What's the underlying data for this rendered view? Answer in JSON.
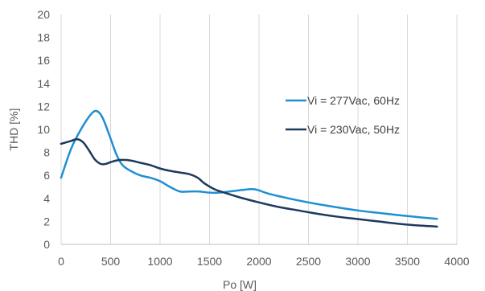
{
  "chart_data": {
    "type": "line",
    "title": "",
    "xlabel": "Po [W]",
    "ylabel": "THD [%]",
    "xlim": [
      0,
      4000
    ],
    "ylim": [
      0,
      20
    ],
    "x_ticks": [
      "0",
      "500",
      "1000",
      "1500",
      "2000",
      "2500",
      "3000",
      "3500",
      "4000"
    ],
    "y_ticks": [
      "0",
      "2",
      "4",
      "6",
      "8",
      "10",
      "12",
      "14",
      "16",
      "18",
      "20"
    ],
    "grid": "vertical",
    "legend_position": "right",
    "series": [
      {
        "name": "Vi = 277Vac, 60Hz",
        "color": "#1f8fd1",
        "points": [
          [
            0,
            5.8
          ],
          [
            100,
            8.3
          ],
          [
            200,
            10.0
          ],
          [
            300,
            11.3
          ],
          [
            360,
            11.6
          ],
          [
            420,
            11.0
          ],
          [
            500,
            9.2
          ],
          [
            560,
            7.8
          ],
          [
            620,
            6.9
          ],
          [
            700,
            6.4
          ],
          [
            800,
            6.0
          ],
          [
            900,
            5.8
          ],
          [
            1000,
            5.5
          ],
          [
            1100,
            5.0
          ],
          [
            1200,
            4.6
          ],
          [
            1300,
            4.6
          ],
          [
            1400,
            4.6
          ],
          [
            1500,
            4.5
          ],
          [
            1600,
            4.5
          ],
          [
            1700,
            4.6
          ],
          [
            1800,
            4.7
          ],
          [
            1900,
            4.8
          ],
          [
            1950,
            4.8
          ],
          [
            2000,
            4.7
          ],
          [
            2100,
            4.4
          ],
          [
            2300,
            4.0
          ],
          [
            2500,
            3.65
          ],
          [
            2700,
            3.35
          ],
          [
            3000,
            2.95
          ],
          [
            3200,
            2.75
          ],
          [
            3400,
            2.55
          ],
          [
            3600,
            2.38
          ],
          [
            3800,
            2.22
          ]
        ]
      },
      {
        "name": "Vi = 230Vac, 50Hz",
        "color": "#1c3a5e",
        "points": [
          [
            0,
            8.75
          ],
          [
            100,
            9.0
          ],
          [
            160,
            9.15
          ],
          [
            220,
            8.9
          ],
          [
            280,
            8.2
          ],
          [
            340,
            7.4
          ],
          [
            400,
            7.0
          ],
          [
            450,
            7.0
          ],
          [
            500,
            7.15
          ],
          [
            560,
            7.3
          ],
          [
            620,
            7.35
          ],
          [
            700,
            7.3
          ],
          [
            800,
            7.1
          ],
          [
            900,
            6.9
          ],
          [
            1000,
            6.6
          ],
          [
            1100,
            6.4
          ],
          [
            1200,
            6.25
          ],
          [
            1300,
            6.1
          ],
          [
            1380,
            5.8
          ],
          [
            1450,
            5.3
          ],
          [
            1550,
            4.8
          ],
          [
            1650,
            4.5
          ],
          [
            1800,
            4.1
          ],
          [
            2000,
            3.65
          ],
          [
            2200,
            3.25
          ],
          [
            2400,
            2.95
          ],
          [
            2600,
            2.65
          ],
          [
            2800,
            2.4
          ],
          [
            3000,
            2.2
          ],
          [
            3200,
            2.0
          ],
          [
            3400,
            1.8
          ],
          [
            3600,
            1.65
          ],
          [
            3800,
            1.55
          ]
        ]
      }
    ]
  }
}
